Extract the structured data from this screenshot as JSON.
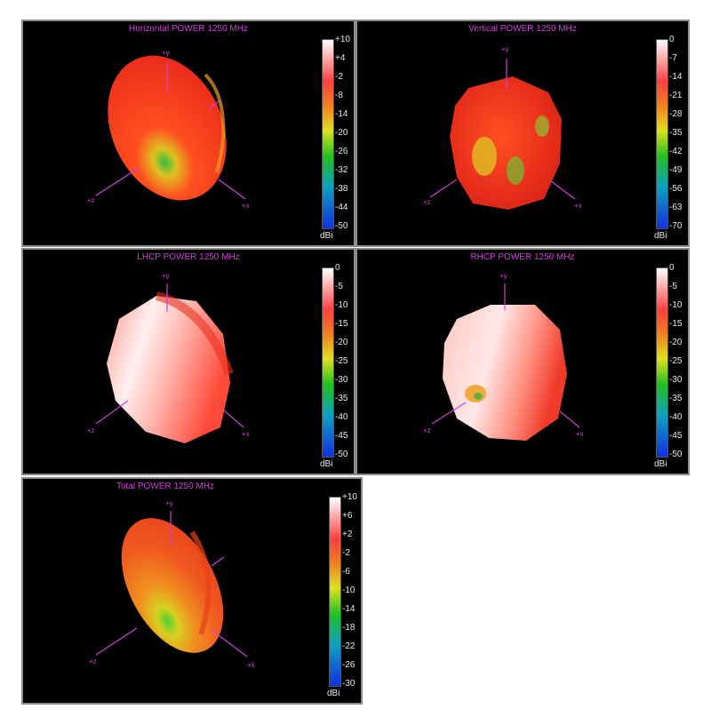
{
  "panels": [
    {
      "title": "Horizontal POWER 1250  MHz",
      "ticks": [
        "+10",
        "+4",
        "-2",
        "-8",
        "-14",
        "-20",
        "-26",
        "-32",
        "-38",
        "-44",
        "-50"
      ],
      "unit": "dBi",
      "axes": {
        "y": "+y",
        "z": "+z",
        "x": "+x"
      },
      "base_color": "#e8301c",
      "highlight_color": "#f0a020"
    },
    {
      "title": "Vertical POWER 1250  MHz",
      "ticks": [
        "0",
        "-7",
        "-14",
        "-21",
        "-28",
        "-35",
        "-42",
        "-49",
        "-56",
        "-63",
        "-70"
      ],
      "unit": "dBi",
      "axes": {
        "y": "+y",
        "z": "+z",
        "x": "+x"
      },
      "base_color": "#e8301c",
      "highlight_color": "#d8c820"
    },
    {
      "title": "LHCP POWER 1250  MHz",
      "ticks": [
        "0",
        "-5",
        "-10",
        "-15",
        "-20",
        "-25",
        "-30",
        "-35",
        "-40",
        "-45",
        "-50"
      ],
      "unit": "dBi",
      "axes": {
        "y": "+y",
        "z": "+z",
        "x": "+x"
      },
      "base_color": "#ff8a80",
      "highlight_color": "#fde8e8"
    },
    {
      "title": "RHCP POWER 1250  MHz",
      "ticks": [
        "0",
        "-5",
        "-10",
        "-15",
        "-20",
        "-25",
        "-30",
        "-35",
        "-40",
        "-45",
        "-50"
      ],
      "unit": "dBi",
      "axes": {
        "y": "+y",
        "z": "+z",
        "x": "+x"
      },
      "base_color": "#ff8a80",
      "highlight_color": "#fde8e8"
    },
    {
      "title": "Total POWER 1250  MHz",
      "ticks": [
        "+10",
        "+6",
        "+2",
        "-2",
        "-6",
        "-10",
        "-14",
        "-18",
        "-22",
        "-26",
        "-30"
      ],
      "unit": "dBi",
      "axes": {
        "y": "+y",
        "z": "+z",
        "x": "+x"
      },
      "base_color": "#f05a20",
      "highlight_color": "#f0c030"
    }
  ],
  "colors": {
    "title": "#d040d8",
    "axis": "#d040d8",
    "tick": "#e6e6e6",
    "panel_bg": "#000000"
  }
}
